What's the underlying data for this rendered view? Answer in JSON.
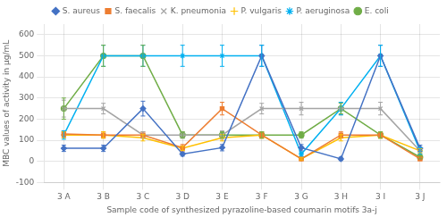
{
  "chart_data": {
    "type": "line",
    "xlabel": "Sample code of synthesized pyrazoline-based coumarin motifs 3a-j",
    "ylabel": "MBC values of activity in µg/mL",
    "categories": [
      "3 A",
      "3 B",
      "3 C",
      "3 D",
      "3 E",
      "3 F",
      "3 G",
      "3 H",
      "3 I",
      "3 J"
    ],
    "series": [
      {
        "name": "S. aureus",
        "color": "#4472C4",
        "marker": "diamond",
        "values": [
          62,
          62,
          250,
          35,
          65,
          500,
          65,
          12,
          500,
          62
        ],
        "errors": [
          15,
          15,
          35,
          10,
          15,
          50,
          15,
          8,
          50,
          15
        ]
      },
      {
        "name": "S. faecalis",
        "color": "#ED7D31",
        "marker": "square",
        "values": [
          130,
          125,
          125,
          65,
          250,
          125,
          12,
          125,
          125,
          12
        ],
        "errors": [
          15,
          15,
          15,
          15,
          30,
          15,
          5,
          15,
          15,
          5
        ]
      },
      {
        "name": "K. pneumonia",
        "color": "#A5A5A5",
        "marker": "x",
        "values": [
          250,
          250,
          125,
          125,
          125,
          250,
          250,
          250,
          250,
          50
        ],
        "errors": [
          40,
          25,
          15,
          15,
          20,
          25,
          30,
          30,
          30,
          15
        ]
      },
      {
        "name": "P. vulgaris",
        "color": "#FFC000",
        "marker": "plus",
        "values": [
          125,
          125,
          112,
          62,
          112,
          125,
          12,
          112,
          125,
          50
        ],
        "errors": [
          15,
          15,
          15,
          10,
          15,
          15,
          5,
          15,
          15,
          10
        ]
      },
      {
        "name": "P. aeruginosa",
        "color": "#00B0F0",
        "marker": "star",
        "values": [
          125,
          500,
          500,
          500,
          500,
          500,
          35,
          250,
          500,
          50
        ],
        "errors": [
          20,
          50,
          50,
          50,
          50,
          50,
          10,
          30,
          50,
          15
        ]
      },
      {
        "name": "E. coli",
        "color": "#70AD47",
        "marker": "circle",
        "values": [
          250,
          500,
          500,
          125,
          125,
          125,
          125,
          250,
          125,
          20
        ],
        "errors": [
          50,
          50,
          50,
          15,
          15,
          15,
          15,
          25,
          15,
          8
        ]
      }
    ],
    "ylim": [
      -100,
      650
    ],
    "yticks": [
      -100,
      0,
      100,
      200,
      300,
      400,
      500,
      600
    ],
    "grid": true,
    "legend": "top"
  }
}
